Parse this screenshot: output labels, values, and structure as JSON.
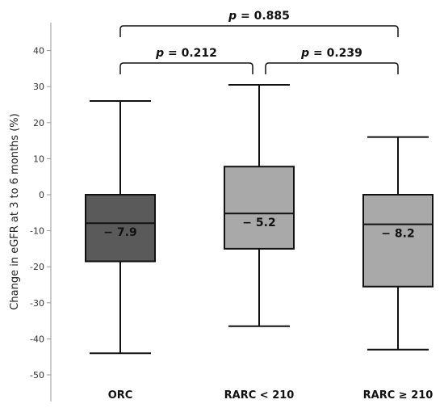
{
  "chart_data": {
    "type": "box",
    "ylabel": "Change in eGFR at 3 to 6 months (%)",
    "ylim": [
      -55,
      45
    ],
    "yticks": [
      40,
      30,
      20,
      10,
      0,
      -10,
      -20,
      -30,
      -40,
      -50
    ],
    "ytick_labels": [
      "40",
      "30",
      "20",
      "10",
      "0",
      "-10",
      "-20",
      "-30",
      "-40",
      "-50"
    ],
    "categories": [
      "ORC",
      "RARC < 210",
      "RARC ≥ 210"
    ],
    "boxes": [
      {
        "min": -44,
        "q1": -18.5,
        "median": -7.9,
        "q3": 0,
        "max": 26,
        "median_label": "− 7.9",
        "color": "#5a5a5a"
      },
      {
        "min": -36.5,
        "q1": -15,
        "median": -5.2,
        "q3": 7.8,
        "max": 30.5,
        "median_label": "− 5.2",
        "color": "#a9a9a9"
      },
      {
        "min": -43,
        "q1": -25.5,
        "median": -8.2,
        "q3": 0,
        "max": 16,
        "median_label": "− 8.2",
        "color": "#a9a9a9"
      }
    ],
    "comparisons": [
      {
        "from": 0,
        "to": 2,
        "label": "p = 0.885"
      },
      {
        "from": 0,
        "to": 1,
        "label": "p = 0.212"
      },
      {
        "from": 1,
        "to": 2,
        "label": "p = 0.239"
      }
    ]
  }
}
